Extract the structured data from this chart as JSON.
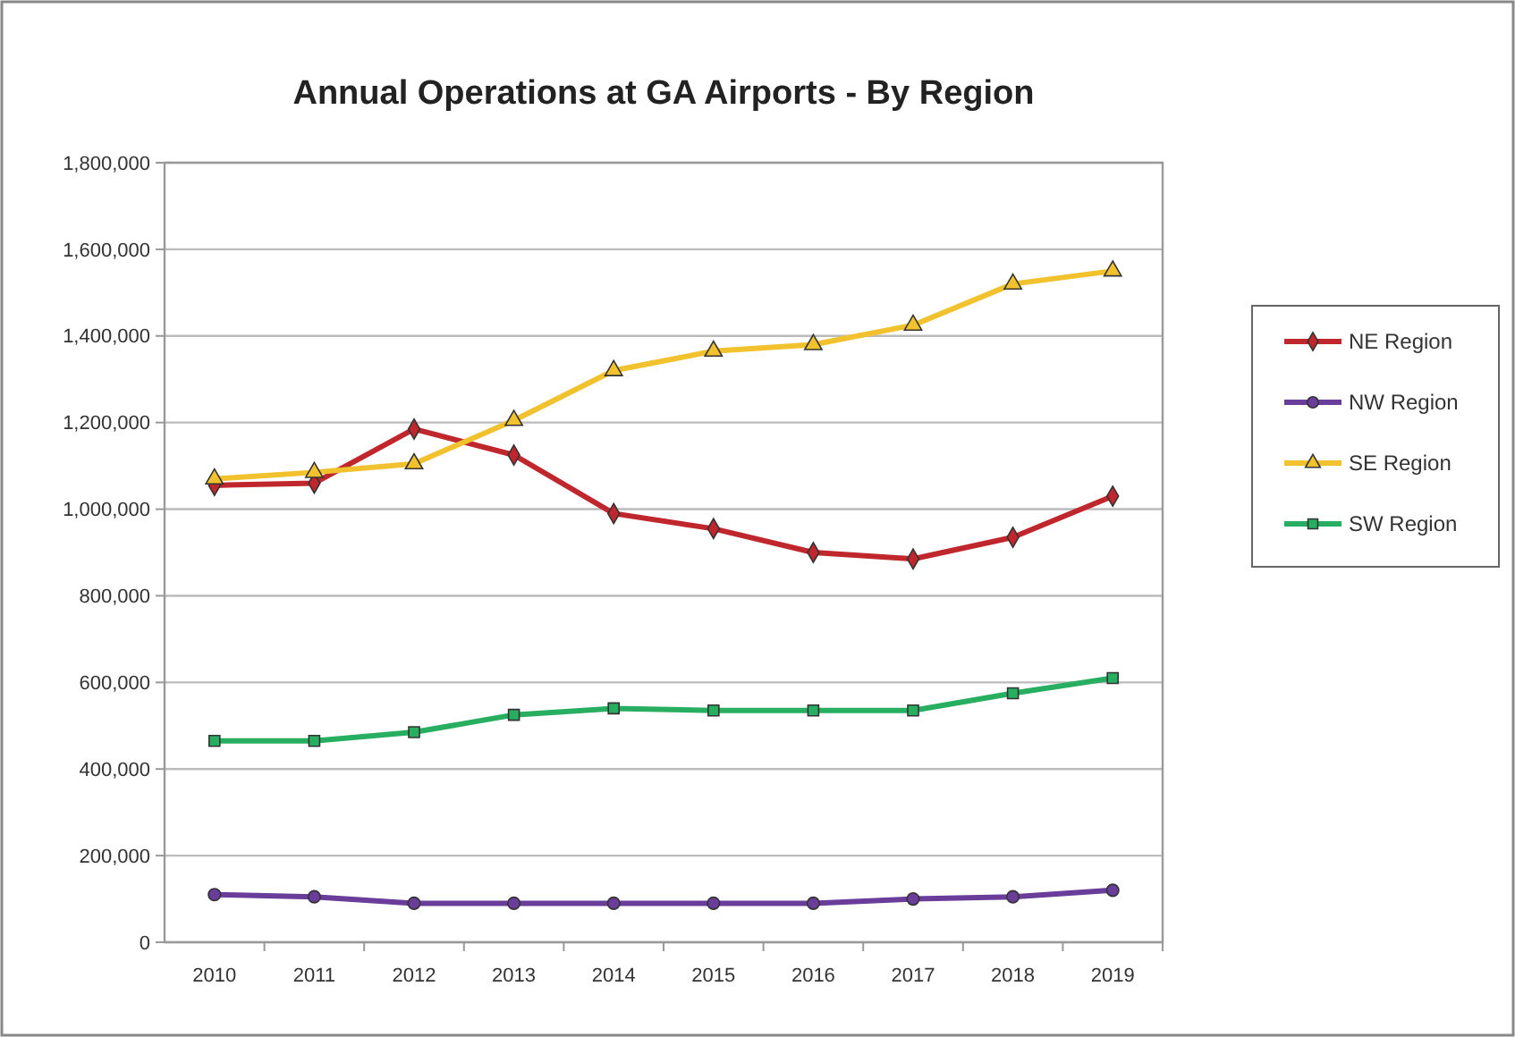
{
  "chart_data": {
    "type": "line",
    "title": "Annual Operations at GA Airports - By Region",
    "categories": [
      "2010",
      "2011",
      "2012",
      "2013",
      "2014",
      "2015",
      "2016",
      "2017",
      "2018",
      "2019"
    ],
    "series": [
      {
        "name": "NE Region",
        "color": "#c0272d",
        "marker": "diamond",
        "values": [
          1055000,
          1060000,
          1185000,
          1125000,
          990000,
          955000,
          900000,
          885000,
          935000,
          1030000
        ]
      },
      {
        "name": "NW Region",
        "color": "#6a3d9a",
        "marker": "circle",
        "values": [
          110000,
          105000,
          90000,
          90000,
          90000,
          90000,
          90000,
          100000,
          105000,
          120000
        ]
      },
      {
        "name": "SE Region",
        "color": "#f2c12e",
        "marker": "triangle",
        "values": [
          1070000,
          1085000,
          1105000,
          1205000,
          1320000,
          1365000,
          1380000,
          1425000,
          1520000,
          1550000
        ]
      },
      {
        "name": "SW Region",
        "color": "#27ae60",
        "marker": "square",
        "values": [
          465000,
          465000,
          485000,
          525000,
          540000,
          535000,
          535000,
          535000,
          575000,
          610000
        ]
      }
    ],
    "ylim": [
      0,
      1800000
    ],
    "yticks": [
      {
        "value": 0,
        "label": "0"
      },
      {
        "value": 200000,
        "label": "200,000"
      },
      {
        "value": 400000,
        "label": "400,000"
      },
      {
        "value": 600000,
        "label": "600,000"
      },
      {
        "value": 800000,
        "label": "800,000"
      },
      {
        "value": 1000000,
        "label": "1,000,000"
      },
      {
        "value": 1200000,
        "label": "1,200,000"
      },
      {
        "value": 1400000,
        "label": "1,400,000"
      },
      {
        "value": 1600000,
        "label": "1,600,000"
      },
      {
        "value": 1800000,
        "label": "1,800,000"
      }
    ],
    "grid": "y",
    "legend": "right"
  }
}
